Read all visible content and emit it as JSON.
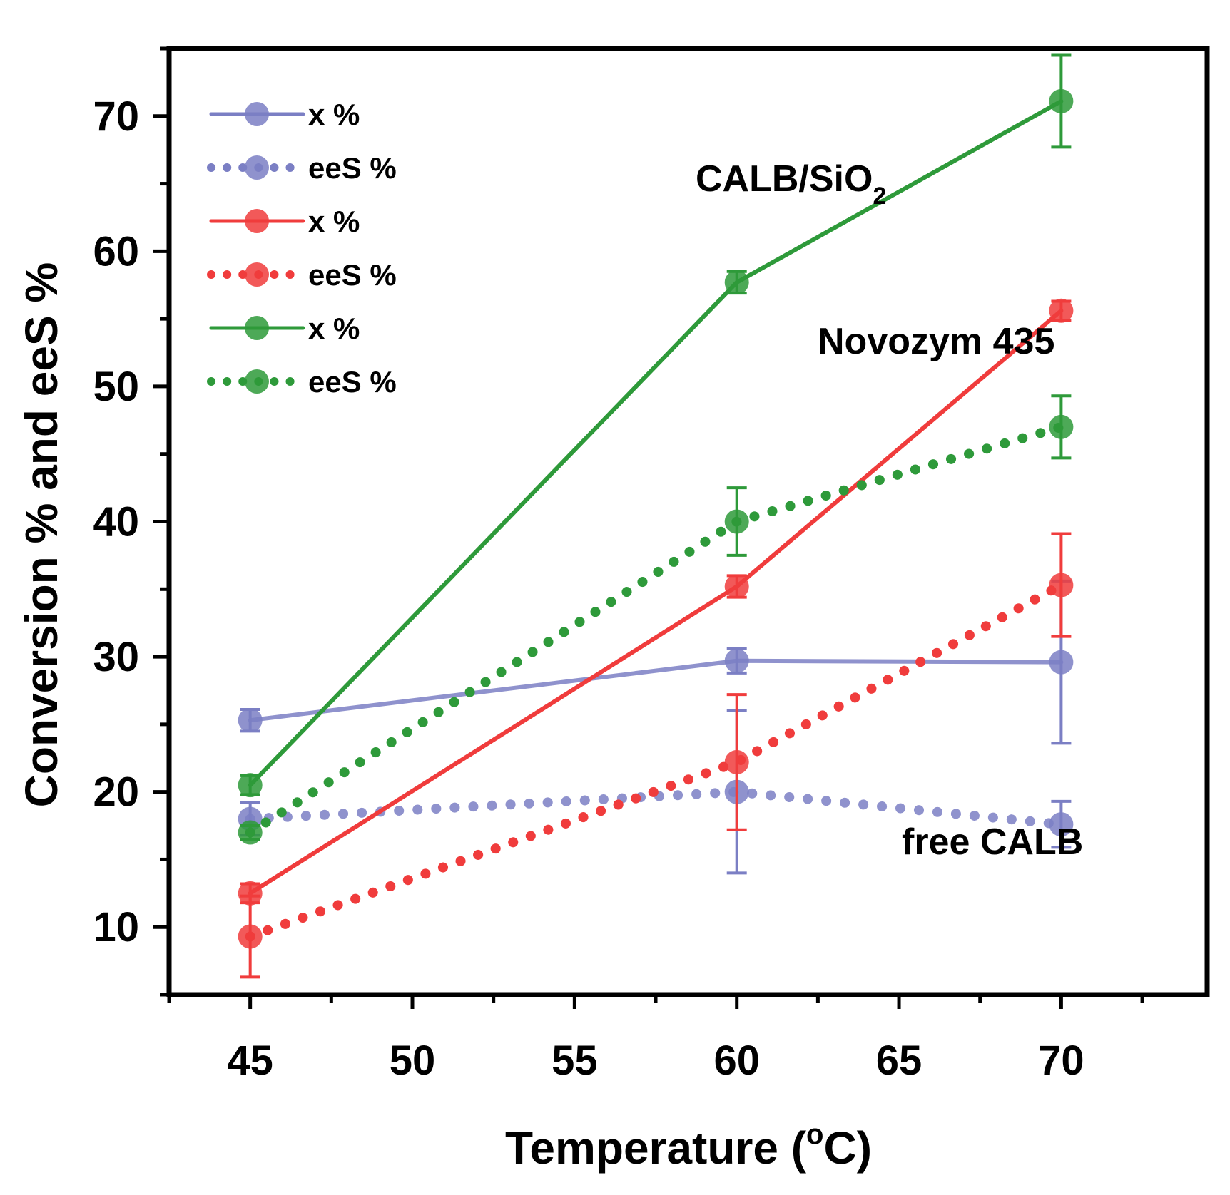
{
  "chart_data": {
    "type": "line",
    "title": "",
    "xlabel": "Temperature (",
    "xlabel_sup": "o",
    "xlabel_unit": "C)",
    "ylabel": "Conversion % and eeS %",
    "xlim": [
      42.5,
      74.5
    ],
    "ylim": [
      5,
      75
    ],
    "x": [
      45,
      60,
      70
    ],
    "x_ticks": [
      45,
      50,
      55,
      60,
      65,
      70
    ],
    "y_ticks": [
      10,
      20,
      30,
      40,
      50,
      60,
      70
    ],
    "series": [
      {
        "name": "x %",
        "group": "free CALB",
        "color": "#7b7fc4",
        "style": "solid",
        "values": [
          25.3,
          29.7,
          29.6
        ],
        "errors": [
          0.8,
          0.9,
          6.0
        ]
      },
      {
        "name": "eeS %",
        "group": "free CALB",
        "color": "#7b7fc4",
        "style": "dotted",
        "values": [
          18.0,
          20.0,
          17.6
        ],
        "errors": [
          1.2,
          6.0,
          1.7
        ]
      },
      {
        "name": "x %",
        "group": "Novozym 435",
        "color": "#f03c3c",
        "style": "solid",
        "values": [
          12.5,
          35.2,
          55.6
        ],
        "errors": [
          0.7,
          0.8,
          0.7
        ]
      },
      {
        "name": "eeS %",
        "group": "Novozym 435",
        "color": "#f03c3c",
        "style": "dotted",
        "values": [
          9.3,
          22.2,
          35.3
        ],
        "errors": [
          3.0,
          5.0,
          3.8
        ]
      },
      {
        "name": "x %",
        "group": "CALB/SiO2",
        "color": "#2e9a3a",
        "style": "solid",
        "values": [
          20.5,
          57.7,
          71.1
        ],
        "errors": [
          0.7,
          0.8,
          3.4
        ]
      },
      {
        "name": "eeS %",
        "group": "CALB/SiO2",
        "color": "#2e9a3a",
        "style": "dotted",
        "values": [
          17.0,
          40.0,
          47.0
        ],
        "errors": [
          0.5,
          2.5,
          2.3
        ]
      }
    ],
    "annotations": {
      "calb_sio2": "CALB/SiO",
      "calb_sio2_sub": "2",
      "novozym": "Novozym  435",
      "free_calb": "free CALB"
    }
  }
}
